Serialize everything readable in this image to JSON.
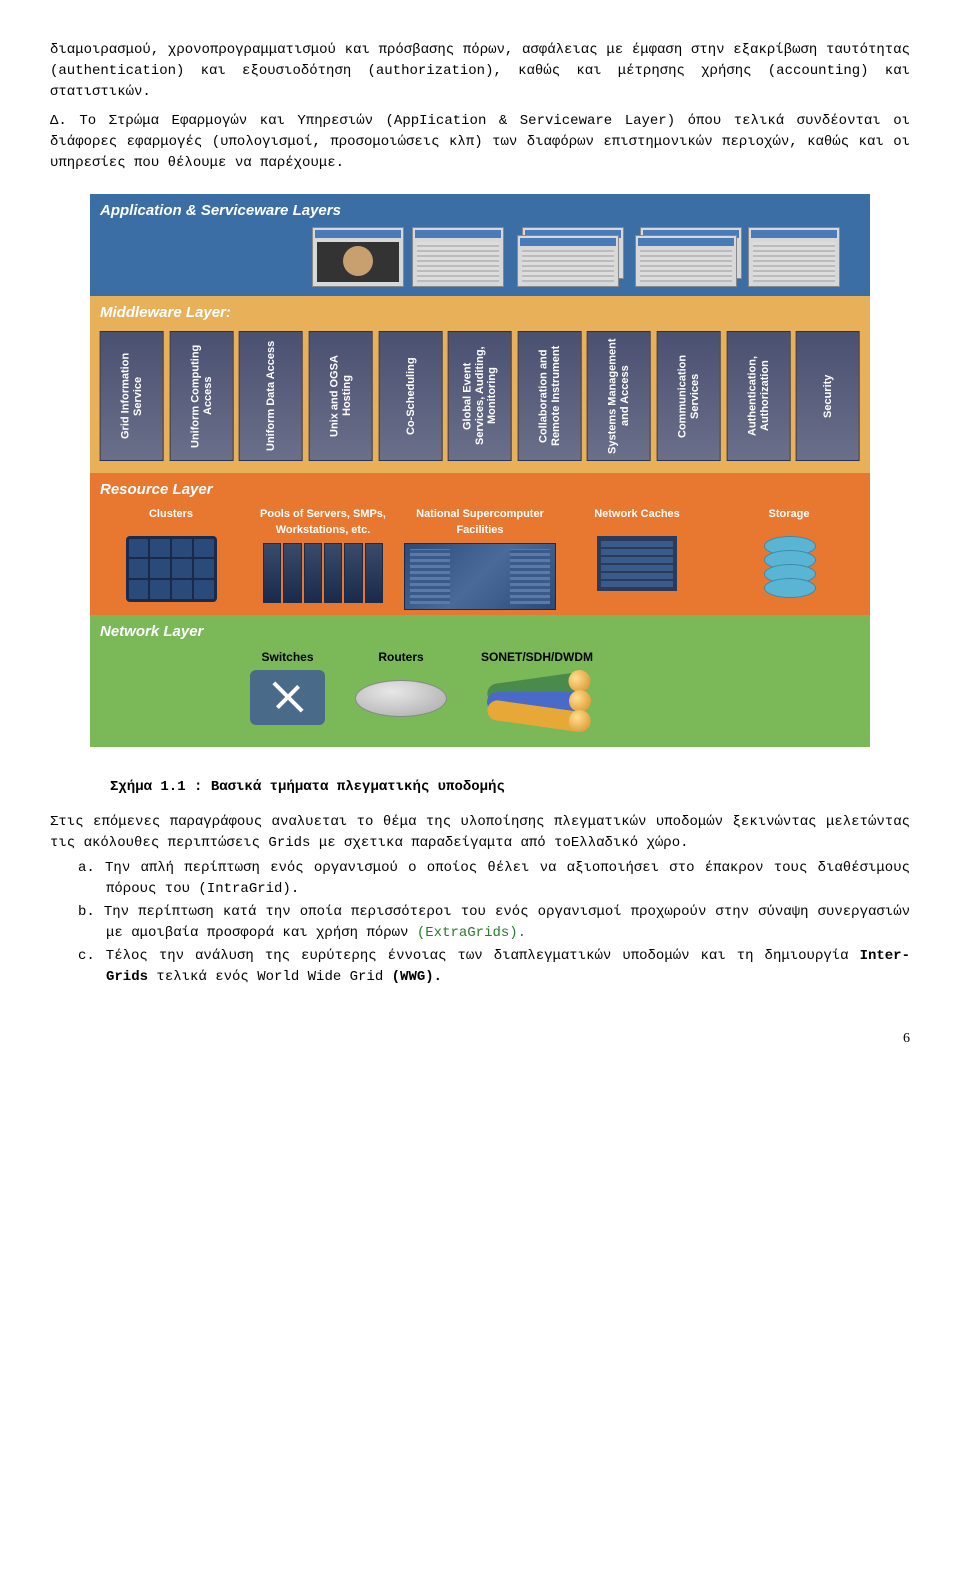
{
  "intro_para": "διαμοιρασμού, χρονοπρογραμματισμού και πρόσβασης πόρων, ασφάλειας με έμφαση στην εξακρίβωση ταυτότητας (authentication) και εξουσιοδότηση (authorization), καθώς και μέτρησης χρήσης (accounting) και στατιστικών.",
  "para_d": "Δ. Το Στρώμα Εφαρμογών και Υπηρεσιών (AppIication & Serviceware Layer) όπου τελικά συνδέονται οι διάφορες εφαρμογές (υπολογισμοί, προσομοιώσεις κλπ) των διαφόρων επιστημονικών περιοχών, καθώς και οι υπηρεσίες που θέλουμε να παρέχουμε.",
  "figure": {
    "app_layer": {
      "title": "Application & Serviceware Layers",
      "bg": "#3a6ea5"
    },
    "mid_layer": {
      "title": "Middleware Layer:",
      "bg": "#e8b058",
      "boxes": [
        "Grid Information Service",
        "Uniform Computing Access",
        "Uniform Data Access",
        "Unix and OGSA Hosting",
        "Co-Scheduling",
        "Global Event Services, Auditing, Monitoring",
        "Collaboration and Remote Instrument",
        "Systems Management and Access",
        "Communication Services",
        "Authentication, Authorization",
        "Security"
      ]
    },
    "res_layer": {
      "title": "Resource Layer",
      "bg": "#e87830",
      "items": [
        "Clusters",
        "Pools of Servers, SMPs, Workstations, etc.",
        "National Supercomputer Facilities",
        "Network Caches",
        "Storage"
      ]
    },
    "net_layer": {
      "title": "Network Layer",
      "bg": "#7ab858",
      "items": [
        "Switches",
        "Routers",
        "SONET/SDH/DWDM"
      ]
    }
  },
  "caption": "Σχήμα 1.1 : Βασικά τμήματα πλεγματικής υποδομής",
  "after_para": "Στις επόμενες παραγράφους αναλυεται το θέμα της υλοποίησης πλεγματικών υποδομών ξεκινώντας μελετώντας τις ακόλουθες περιπτώσεις Grids με σχετικα παραδείγαμτα από τοΕλλαδικό χώρο.",
  "list": {
    "a": "a. Την απλή περίπτωση ενός οργανισμού ο οποίος θέλει να αξιοποιήσει στο έπακρον τους διαθέσιμους πόρους του (IntraGrid).",
    "b_pre": "b. Την περίπτωση κατά την οποία περισσότεροι του ενός οργανισμοί προχωρούν στην σύναψη συνεργασιών με αμοιβαία προσφορά και χρήση πόρων ",
    "b_green": "(ExtraGrids).",
    "c_pre": "c. Τέλος την ανάλυση της ευρύτερης έννοιας των διαπλεγματικών υποδομών και τη δημιουργία ",
    "c_b1": "Inter-Grids",
    "c_mid": " τελικά ενός World Wide Grid ",
    "c_b2": "(WWG)."
  },
  "page": "6"
}
